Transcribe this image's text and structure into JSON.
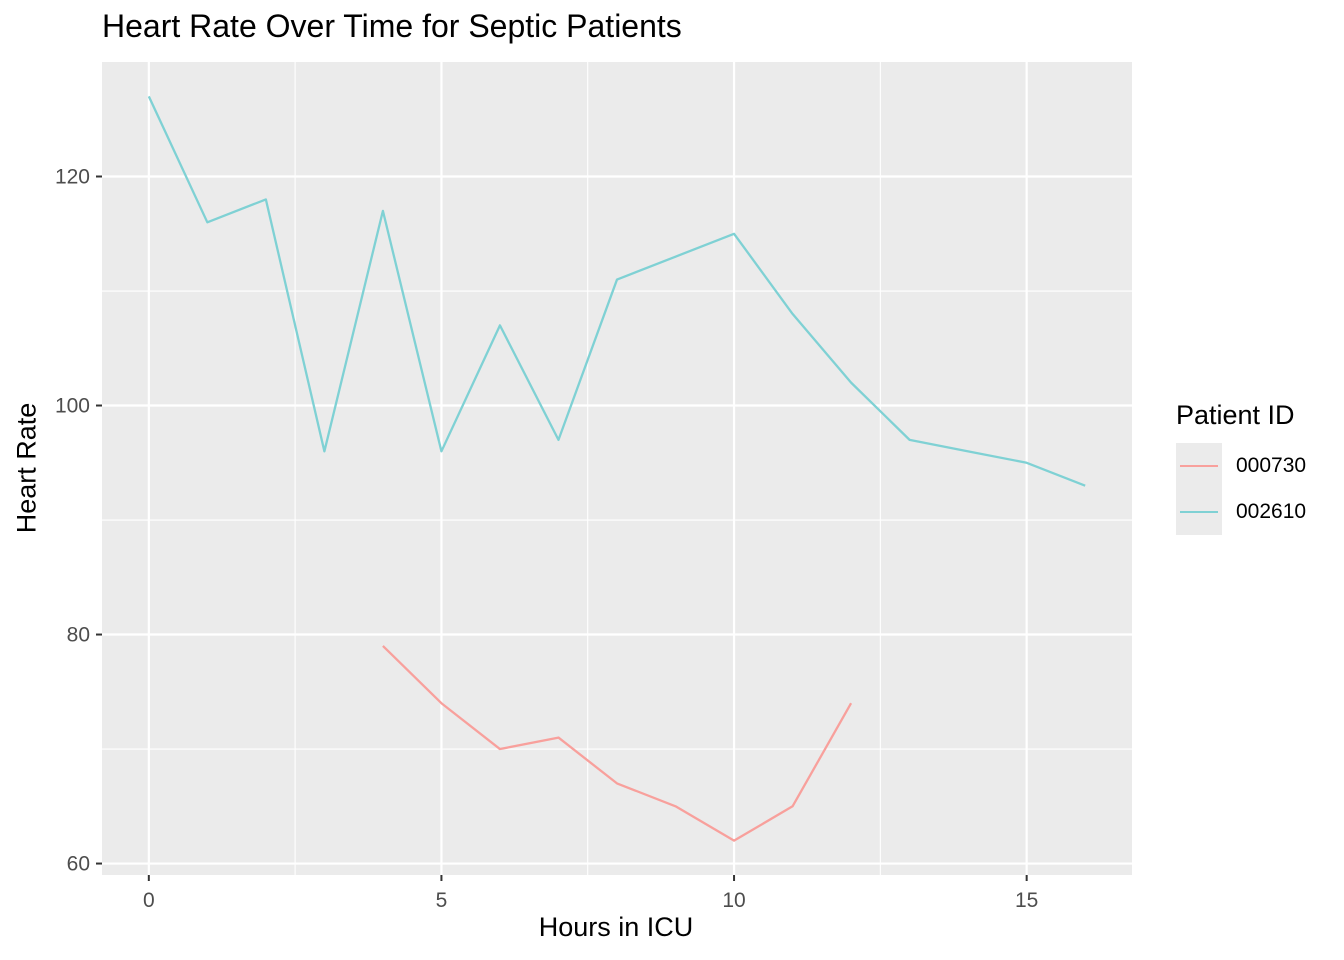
{
  "chart_data": {
    "type": "line",
    "title": "Heart Rate Over Time for Septic Patients",
    "xlabel": "Hours in ICU",
    "ylabel": "Heart Rate",
    "xlim": [
      -0.8,
      16.8
    ],
    "ylim": [
      59,
      130
    ],
    "x_ticks": [
      0,
      5,
      10,
      15
    ],
    "y_ticks": [
      60,
      80,
      100,
      120
    ],
    "x_tick_labels": [
      "0",
      "5",
      "10",
      "15"
    ],
    "y_tick_labels": [
      "60",
      "80",
      "100",
      "120"
    ],
    "x_minor": [
      2.5,
      7.5,
      12.5
    ],
    "y_minor": [
      70,
      90,
      110
    ],
    "grid": true,
    "legend": {
      "title": "Patient ID",
      "position": "right"
    },
    "panel_background": "#ebebeb",
    "series": [
      {
        "name": "000730",
        "color": "#f8a09c",
        "x": [
          4,
          5,
          6,
          7,
          8,
          9,
          10,
          11,
          12
        ],
        "y": [
          79,
          74,
          70,
          71,
          67,
          65,
          62,
          65,
          74
        ]
      },
      {
        "name": "002610",
        "color": "#7fd1d4",
        "x": [
          0,
          1,
          2,
          3,
          4,
          5,
          6,
          7,
          8,
          9,
          10,
          11,
          12,
          13,
          14,
          15,
          16
        ],
        "y": [
          127,
          116,
          118,
          96,
          117,
          96,
          107,
          97,
          111,
          113,
          115,
          108,
          102,
          97,
          96,
          95,
          93
        ]
      }
    ]
  }
}
